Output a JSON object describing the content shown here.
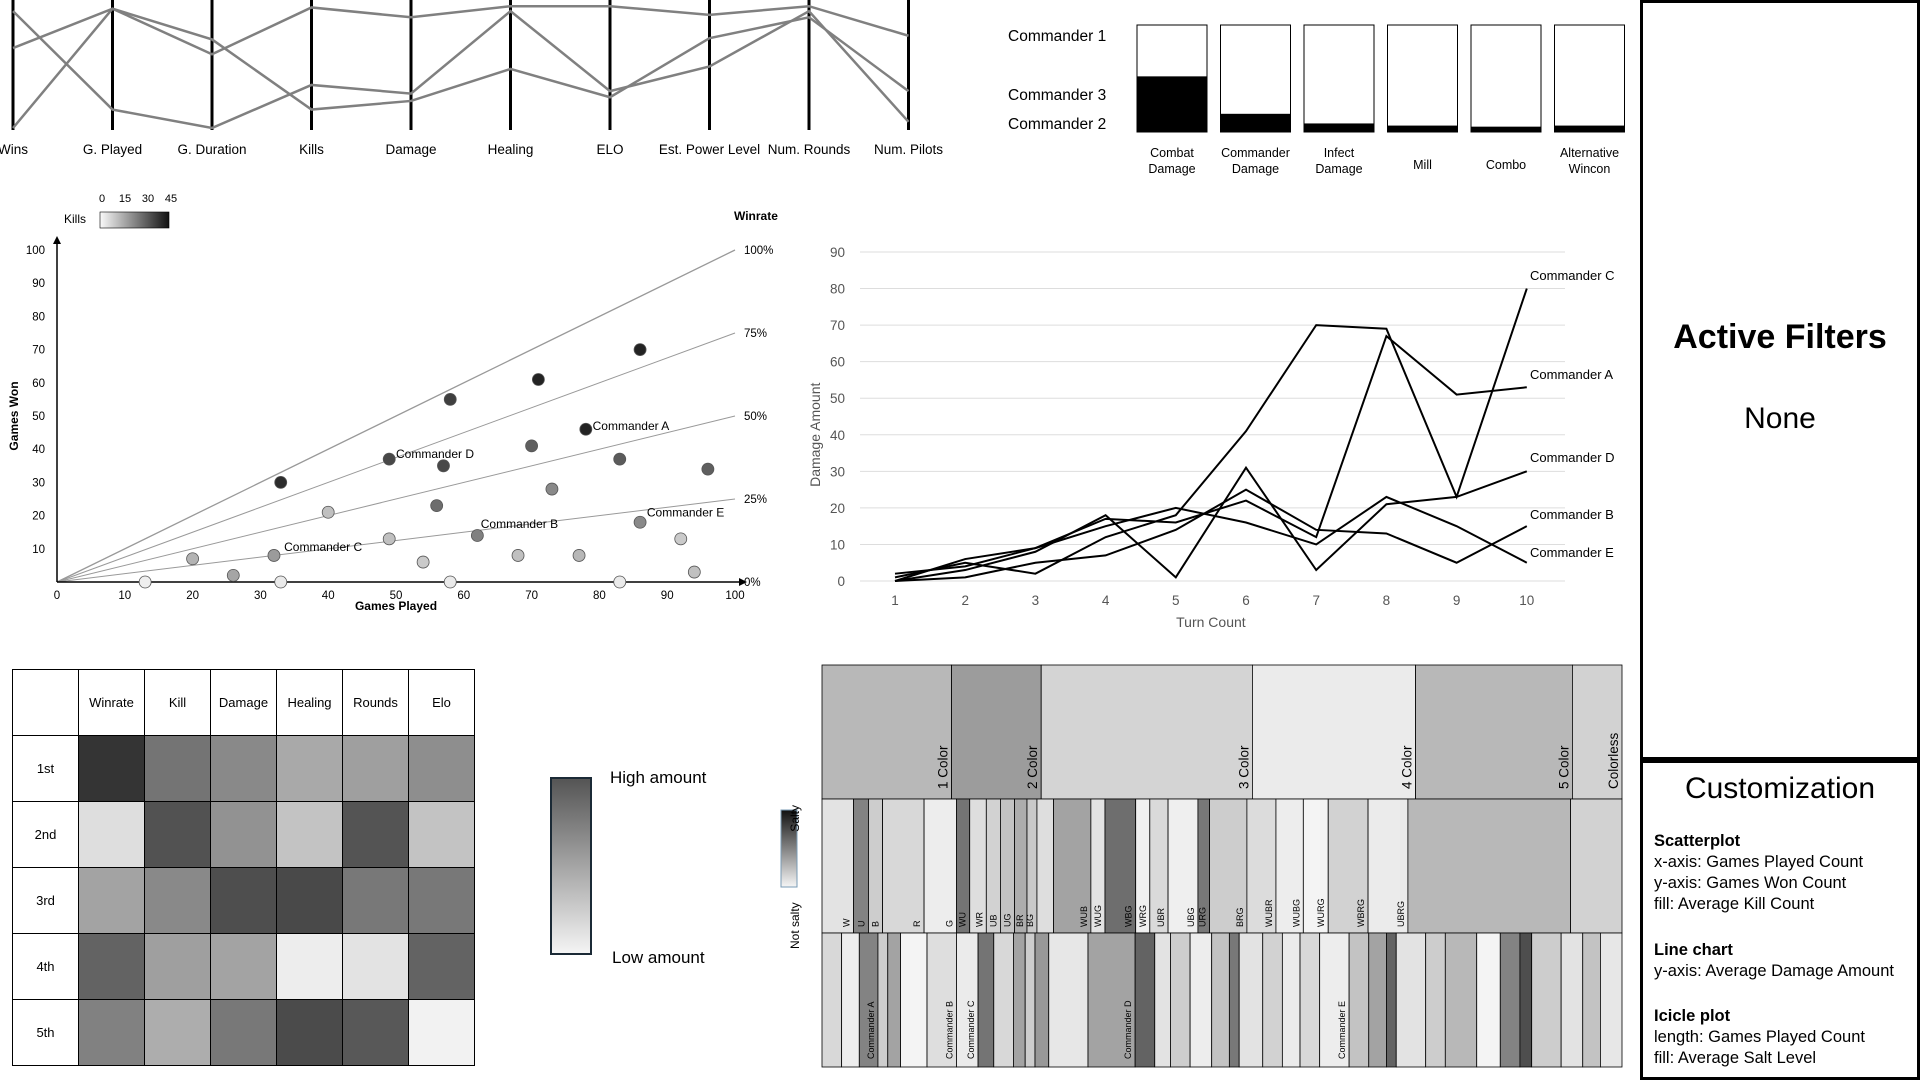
{
  "parallel": {
    "axes": [
      "Wins",
      "G. Played",
      "G. Duration",
      "Kills",
      "Damage",
      "Healing",
      "ELO",
      "Est. Power Level",
      "Num. Rounds",
      "Num. Pilots"
    ],
    "commanders": [
      {
        "name": "Commander 1",
        "values": [
          0.65,
          0.97,
          0.6,
          0.98,
          0.9,
          0.99,
          0.99,
          0.92,
          0.99,
          0.75
        ]
      },
      {
        "name": "Commander 3",
        "values": [
          0.0,
          0.97,
          0.72,
          0.15,
          0.22,
          0.48,
          0.25,
          0.73,
          0.9,
          0.3
        ]
      },
      {
        "name": "Commander 2",
        "values": [
          0.95,
          0.15,
          0.0,
          0.35,
          0.28,
          0.95,
          0.3,
          0.5,
          0.95,
          0.05
        ]
      }
    ]
  },
  "wincon": {
    "categories": [
      "Combat Damage",
      "Commander Damage",
      "Infect Damage",
      "Mill",
      "Combo",
      "Alternative Wincon"
    ],
    "values": [
      0.52,
      0.17,
      0.08,
      0.06,
      0.05,
      0.06
    ]
  },
  "scatter": {
    "legend_title": "Kills",
    "legend_ticks": [
      "0",
      "15",
      "30",
      "45"
    ],
    "xlabel": "Games Played",
    "ylabel": "Games Won",
    "y2label": "Winrate",
    "xticks": [
      0,
      10,
      20,
      30,
      40,
      50,
      60,
      70,
      80,
      90,
      100
    ],
    "yticks": [
      10,
      20,
      30,
      40,
      50,
      60,
      70,
      80,
      90,
      100
    ],
    "winrate_lines": [
      {
        "rate": 1,
        "label": "100%"
      },
      {
        "rate": 0.75,
        "label": "75%"
      },
      {
        "rate": 0.5,
        "label": "50%"
      },
      {
        "rate": 0.25,
        "label": "25%"
      },
      {
        "rate": 0,
        "label": "0%"
      }
    ],
    "points": [
      {
        "x": 13,
        "y": 0,
        "k": 2
      },
      {
        "x": 20,
        "y": 7,
        "k": 15
      },
      {
        "x": 26,
        "y": 2,
        "k": 18
      },
      {
        "x": 33,
        "y": 0,
        "k": 3
      },
      {
        "x": 33,
        "y": 30,
        "k": 44
      },
      {
        "x": 32,
        "y": 8,
        "k": 20
      },
      {
        "x": 40,
        "y": 21,
        "k": 12
      },
      {
        "x": 49,
        "y": 13,
        "k": 12
      },
      {
        "x": 49,
        "y": 37,
        "k": 38
      },
      {
        "x": 54,
        "y": 6,
        "k": 10
      },
      {
        "x": 56,
        "y": 23,
        "k": 30
      },
      {
        "x": 57,
        "y": 35,
        "k": 38
      },
      {
        "x": 58,
        "y": 55,
        "k": 40
      },
      {
        "x": 58,
        "y": 0,
        "k": 3
      },
      {
        "x": 62,
        "y": 14,
        "k": 26
      },
      {
        "x": 68,
        "y": 8,
        "k": 12
      },
      {
        "x": 70,
        "y": 41,
        "k": 33
      },
      {
        "x": 71,
        "y": 61,
        "k": 46
      },
      {
        "x": 73,
        "y": 28,
        "k": 24
      },
      {
        "x": 77,
        "y": 8,
        "k": 14
      },
      {
        "x": 78,
        "y": 46,
        "k": 46
      },
      {
        "x": 83,
        "y": 0,
        "k": 3
      },
      {
        "x": 83,
        "y": 37,
        "k": 34
      },
      {
        "x": 86,
        "y": 70,
        "k": 46
      },
      {
        "x": 86,
        "y": 18,
        "k": 24
      },
      {
        "x": 92,
        "y": 13,
        "k": 10
      },
      {
        "x": 94,
        "y": 3,
        "k": 12
      },
      {
        "x": 96,
        "y": 34,
        "k": 33
      }
    ],
    "labels": [
      {
        "text": "Commander A",
        "x": 79,
        "y": 47
      },
      {
        "text": "Commander D",
        "x": 50,
        "y": 38.5
      },
      {
        "text": "Commander B",
        "x": 62.5,
        "y": 17.5
      },
      {
        "text": "Commander E",
        "x": 87,
        "y": 21
      },
      {
        "text": "Commander C",
        "x": 33.5,
        "y": 10.5
      }
    ]
  },
  "line": {
    "xlabel": "Turn Count",
    "ylabel": "Damage Amount",
    "x": [
      1,
      2,
      3,
      4,
      5,
      6,
      7,
      8,
      9,
      10
    ],
    "yticks": [
      0,
      10,
      20,
      30,
      40,
      50,
      60,
      70,
      80,
      90
    ],
    "series": [
      {
        "name": "Commander C",
        "values": [
          1,
          5,
          2,
          12,
          18,
          41,
          70,
          69,
          23,
          80
        ]
      },
      {
        "name": "Commander A",
        "values": [
          2,
          4,
          9,
          17,
          16,
          22,
          12,
          67,
          51,
          53
        ]
      },
      {
        "name": "Commander D",
        "values": [
          0,
          3,
          8,
          18,
          1,
          31,
          3,
          21,
          23,
          30
        ]
      },
      {
        "name": "Commander B",
        "values": [
          0,
          6,
          9,
          15,
          20,
          16,
          10,
          23,
          15,
          5
        ]
      },
      {
        "name": "Commander E",
        "values": [
          0,
          1,
          5,
          7,
          14,
          25,
          14,
          13,
          5,
          15
        ]
      }
    ]
  },
  "heatmap": {
    "columns": [
      "Winrate",
      "Kill",
      "Damage",
      "Healing",
      "Rounds",
      "Elo"
    ],
    "rows": [
      {
        "label": "1st",
        "values": [
          0.92,
          0.62,
          0.52,
          0.37,
          0.42,
          0.5
        ]
      },
      {
        "label": "2nd",
        "values": [
          0.12,
          0.78,
          0.48,
          0.25,
          0.77,
          0.25
        ]
      },
      {
        "label": "3rd",
        "values": [
          0.4,
          0.52,
          0.8,
          0.82,
          0.6,
          0.6
        ]
      },
      {
        "label": "4th",
        "values": [
          0.7,
          0.42,
          0.4,
          0.05,
          0.1,
          0.7
        ]
      },
      {
        "label": "5th",
        "values": [
          0.56,
          0.35,
          0.6,
          0.81,
          0.75,
          0.03
        ]
      }
    ],
    "legend_high": "High amount",
    "legend_low": "Low amount"
  },
  "icicle": {
    "legend_high": "Salty",
    "legend_low": "Not salty",
    "level1": [
      {
        "label": "1 Color",
        "w": 0.162,
        "s": 0.3
      },
      {
        "label": "2 Color",
        "w": 0.112,
        "s": 0.43
      },
      {
        "label": "3 Color",
        "w": 0.264,
        "s": 0.17
      },
      {
        "label": "4 Color",
        "w": 0.204,
        "s": 0.06
      },
      {
        "label": "5 Color",
        "w": 0.196,
        "s": 0.3
      },
      {
        "label": "Colorless",
        "w": 0.062,
        "s": 0.18
      }
    ],
    "level2": [
      {
        "label": "",
        "w": 0.038,
        "s": 0.1
      },
      {
        "label": "W",
        "w": 0.0,
        "s": 0.1
      },
      {
        "label": "U",
        "w": 0.018,
        "s": 0.55
      },
      {
        "label": "B",
        "w": 0.017,
        "s": 0.2
      },
      {
        "label": "R",
        "w": 0.05,
        "s": 0.15
      },
      {
        "label": "G",
        "w": 0.039,
        "s": 0.05
      },
      {
        "label": "WU",
        "w": 0.016,
        "s": 0.62
      },
      {
        "label": "WR",
        "w": 0.02,
        "s": 0.12
      },
      {
        "label": "UB",
        "w": 0.017,
        "s": 0.18
      },
      {
        "label": "UG",
        "w": 0.017,
        "s": 0.25
      },
      {
        "label": "BR",
        "w": 0.015,
        "s": 0.35
      },
      {
        "label": "BG",
        "w": 0.012,
        "s": 0.22
      },
      {
        "label": "",
        "w": 0.02,
        "s": 0.12
      },
      {
        "label": "WUB",
        "w": 0.045,
        "s": 0.4
      },
      {
        "label": "WUG",
        "w": 0.017,
        "s": 0.1
      },
      {
        "label": "WBG",
        "w": 0.037,
        "s": 0.65
      },
      {
        "label": "WRG",
        "w": 0.017,
        "s": 0.04
      },
      {
        "label": "UBR",
        "w": 0.022,
        "s": 0.14
      },
      {
        "label": "UBG",
        "w": 0.036,
        "s": 0.04
      },
      {
        "label": "URG",
        "w": 0.014,
        "s": 0.6
      },
      {
        "label": "BRG",
        "w": 0.045,
        "s": 0.2
      },
      {
        "label": "WUBR",
        "w": 0.035,
        "s": 0.13
      },
      {
        "label": "WUBG",
        "w": 0.033,
        "s": 0.05
      },
      {
        "label": "WURG",
        "w": 0.03,
        "s": 0.02
      },
      {
        "label": "WBRG",
        "w": 0.048,
        "s": 0.18
      },
      {
        "label": "UBRG",
        "w": 0.048,
        "s": 0.06
      },
      {
        "label": "",
        "w": 0.196,
        "s": 0.3
      },
      {
        "label": "",
        "w": 0.062,
        "s": 0.18
      }
    ],
    "level3": [
      {
        "label": "",
        "w": 0.02,
        "s": 0.15
      },
      {
        "label": "",
        "w": 0.018,
        "s": 0.05
      },
      {
        "label": "Commander A",
        "w": 0.019,
        "s": 0.55
      },
      {
        "label": "",
        "w": 0.01,
        "s": 0.2
      },
      {
        "label": "",
        "w": 0.013,
        "s": 0.4
      },
      {
        "label": "",
        "w": 0.027,
        "s": 0.02
      },
      {
        "label": "Commander B",
        "w": 0.03,
        "s": 0.12
      },
      {
        "label": "Commander C",
        "w": 0.022,
        "s": 0.06
      },
      {
        "label": "",
        "w": 0.016,
        "s": 0.62
      },
      {
        "label": "",
        "w": 0.02,
        "s": 0.15
      },
      {
        "label": "",
        "w": 0.012,
        "s": 0.4
      },
      {
        "label": "",
        "w": 0.01,
        "s": 0.2
      },
      {
        "label": "",
        "w": 0.014,
        "s": 0.45
      },
      {
        "label": "",
        "w": 0.04,
        "s": 0.08
      },
      {
        "label": "Commander D",
        "w": 0.048,
        "s": 0.4
      },
      {
        "label": "",
        "w": 0.02,
        "s": 0.7
      },
      {
        "label": "",
        "w": 0.016,
        "s": 0.1
      },
      {
        "label": "",
        "w": 0.02,
        "s": 0.2
      },
      {
        "label": "",
        "w": 0.022,
        "s": 0.05
      },
      {
        "label": "",
        "w": 0.018,
        "s": 0.25
      },
      {
        "label": "",
        "w": 0.01,
        "s": 0.6
      },
      {
        "label": "",
        "w": 0.024,
        "s": 0.1
      },
      {
        "label": "",
        "w": 0.02,
        "s": 0.18
      },
      {
        "label": "",
        "w": 0.018,
        "s": 0.06
      },
      {
        "label": "",
        "w": 0.02,
        "s": 0.15
      },
      {
        "label": "Commander E",
        "w": 0.03,
        "s": 0.05
      },
      {
        "label": "",
        "w": 0.02,
        "s": 0.25
      },
      {
        "label": "",
        "w": 0.018,
        "s": 0.4
      },
      {
        "label": "",
        "w": 0.01,
        "s": 0.7
      },
      {
        "label": "",
        "w": 0.03,
        "s": 0.1
      },
      {
        "label": "",
        "w": 0.02,
        "s": 0.2
      },
      {
        "label": "",
        "w": 0.032,
        "s": 0.3
      },
      {
        "label": "",
        "w": 0.024,
        "s": 0.02
      },
      {
        "label": "",
        "w": 0.02,
        "s": 0.55
      },
      {
        "label": "",
        "w": 0.012,
        "s": 0.8
      },
      {
        "label": "",
        "w": 0.03,
        "s": 0.2
      },
      {
        "label": "",
        "w": 0.022,
        "s": 0.1
      },
      {
        "label": "",
        "w": 0.018,
        "s": 0.25
      },
      {
        "label": "",
        "w": 0.022,
        "s": 0.08
      }
    ]
  },
  "filters": {
    "title": "Active Filters",
    "value": "None"
  },
  "customization": {
    "title": "Customization",
    "sections": [
      {
        "heading": "Scatterplot",
        "lines": [
          "x-axis: Games Played Count",
          "y-axis: Games Won Count",
          "fill: Average Kill Count"
        ]
      },
      {
        "heading": "Line chart",
        "lines": [
          "y-axis: Average Damage Amount"
        ]
      },
      {
        "heading": "Icicle plot",
        "lines": [
          "length: Games Played Count",
          "fill: Average Salt Level"
        ]
      }
    ]
  }
}
